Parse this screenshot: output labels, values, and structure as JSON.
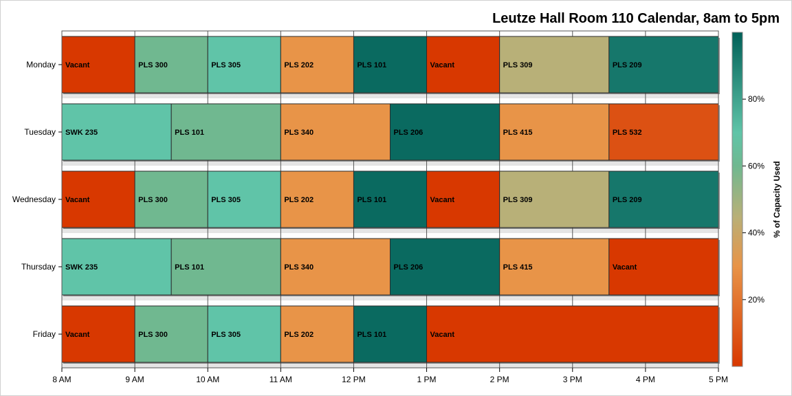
{
  "chart_data": {
    "type": "bar",
    "orientation": "horizontal-timeline",
    "title": "Leutze Hall Room 110 Calendar, 8am to 5pm",
    "xlabel": "",
    "ylabel": "",
    "x_range_hours": [
      8,
      17
    ],
    "x_ticks": [
      {
        "hour": 8,
        "label": "8 AM"
      },
      {
        "hour": 9,
        "label": "9 AM"
      },
      {
        "hour": 10,
        "label": "10 AM"
      },
      {
        "hour": 11,
        "label": "11 AM"
      },
      {
        "hour": 12,
        "label": "12 PM"
      },
      {
        "hour": 13,
        "label": "1 PM"
      },
      {
        "hour": 14,
        "label": "2 PM"
      },
      {
        "hour": 15,
        "label": "3 PM"
      },
      {
        "hour": 16,
        "label": "4 PM"
      },
      {
        "hour": 17,
        "label": "5 PM"
      }
    ],
    "colorbar": {
      "label": "% of Capacity Used",
      "range": [
        0,
        100
      ],
      "ticks": [
        {
          "value": 20,
          "label": "20%"
        },
        {
          "value": 40,
          "label": "40%"
        },
        {
          "value": 60,
          "label": "60%"
        },
        {
          "value": 80,
          "label": "80%"
        }
      ],
      "stops": [
        {
          "value": 0,
          "color": "#d83800"
        },
        {
          "value": 30,
          "color": "#e89448"
        },
        {
          "value": 45,
          "color": "#b8b078"
        },
        {
          "value": 60,
          "color": "#70b890"
        },
        {
          "value": 70,
          "color": "#60c4a8"
        },
        {
          "value": 100,
          "color": "#006058"
        }
      ]
    },
    "days": [
      {
        "day": "Monday",
        "segments": [
          {
            "start": 8,
            "end": 9,
            "label": "Vacant",
            "capacity": 0
          },
          {
            "start": 9,
            "end": 10,
            "label": "PLS 300",
            "capacity": 60
          },
          {
            "start": 10,
            "end": 11,
            "label": "PLS 305",
            "capacity": 70
          },
          {
            "start": 11,
            "end": 12,
            "label": "PLS 202",
            "capacity": 30
          },
          {
            "start": 12,
            "end": 13,
            "label": "PLS 101",
            "capacity": 97
          },
          {
            "start": 13,
            "end": 14,
            "label": "Vacant",
            "capacity": 0
          },
          {
            "start": 14,
            "end": 15.5,
            "label": "PLS 309",
            "capacity": 45
          },
          {
            "start": 15.5,
            "end": 17,
            "label": "PLS 209",
            "capacity": 93
          }
        ]
      },
      {
        "day": "Tuesday",
        "segments": [
          {
            "start": 8,
            "end": 9.5,
            "label": "SWK 235",
            "capacity": 70
          },
          {
            "start": 9.5,
            "end": 11,
            "label": "PLS 101",
            "capacity": 60
          },
          {
            "start": 11,
            "end": 12.5,
            "label": "PLS 340",
            "capacity": 30
          },
          {
            "start": 12.5,
            "end": 14,
            "label": "PLS 206",
            "capacity": 97
          },
          {
            "start": 14,
            "end": 15.5,
            "label": "PLS 415",
            "capacity": 30
          },
          {
            "start": 15.5,
            "end": 17,
            "label": "PLS 532",
            "capacity": 8
          }
        ]
      },
      {
        "day": "Wednesday",
        "segments": [
          {
            "start": 8,
            "end": 9,
            "label": "Vacant",
            "capacity": 0
          },
          {
            "start": 9,
            "end": 10,
            "label": "PLS 300",
            "capacity": 60
          },
          {
            "start": 10,
            "end": 11,
            "label": "PLS 305",
            "capacity": 70
          },
          {
            "start": 11,
            "end": 12,
            "label": "PLS 202",
            "capacity": 30
          },
          {
            "start": 12,
            "end": 13,
            "label": "PLS 101",
            "capacity": 97
          },
          {
            "start": 13,
            "end": 14,
            "label": "Vacant",
            "capacity": 0
          },
          {
            "start": 14,
            "end": 15.5,
            "label": "PLS 309",
            "capacity": 45
          },
          {
            "start": 15.5,
            "end": 17,
            "label": "PLS 209",
            "capacity": 93
          }
        ]
      },
      {
        "day": "Thursday",
        "segments": [
          {
            "start": 8,
            "end": 9.5,
            "label": "SWK 235",
            "capacity": 70
          },
          {
            "start": 9.5,
            "end": 11,
            "label": "PLS 101",
            "capacity": 60
          },
          {
            "start": 11,
            "end": 12.5,
            "label": "PLS 340",
            "capacity": 30
          },
          {
            "start": 12.5,
            "end": 14,
            "label": "PLS 206",
            "capacity": 97
          },
          {
            "start": 14,
            "end": 15.5,
            "label": "PLS 415",
            "capacity": 30
          },
          {
            "start": 15.5,
            "end": 17,
            "label": "Vacant",
            "capacity": 0
          }
        ]
      },
      {
        "day": "Friday",
        "segments": [
          {
            "start": 8,
            "end": 9,
            "label": "Vacant",
            "capacity": 0
          },
          {
            "start": 9,
            "end": 10,
            "label": "PLS 300",
            "capacity": 60
          },
          {
            "start": 10,
            "end": 11,
            "label": "PLS 305",
            "capacity": 70
          },
          {
            "start": 11,
            "end": 12,
            "label": "PLS 202",
            "capacity": 30
          },
          {
            "start": 12,
            "end": 13,
            "label": "PLS 101",
            "capacity": 97
          },
          {
            "start": 13,
            "end": 17,
            "label": "Vacant",
            "capacity": 0
          }
        ]
      }
    ]
  }
}
